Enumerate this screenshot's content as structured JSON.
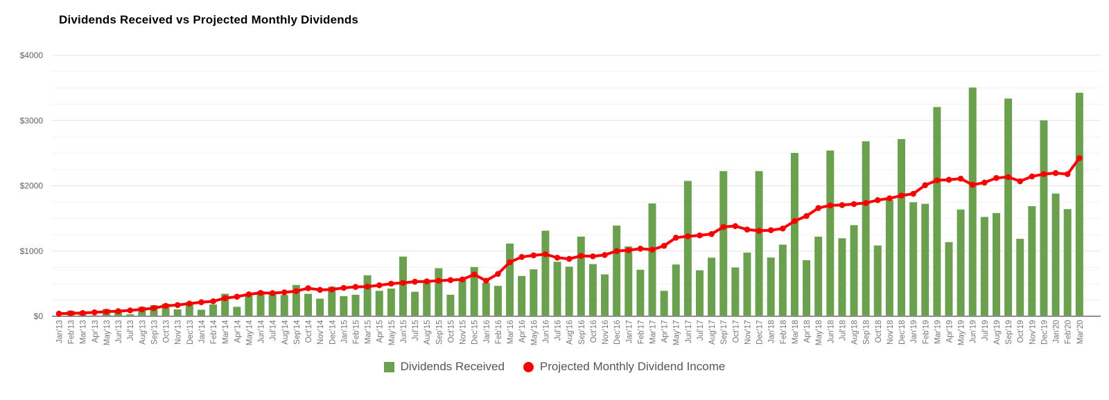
{
  "title": "Dividends Received vs Projected Monthly Dividends",
  "legend": {
    "items": [
      {
        "label": "Dividends Received",
        "shape": "square",
        "color": "#6ba04f"
      },
      {
        "label": "Projected Monthly Dividend Income",
        "shape": "circle",
        "color": "#fa0000"
      }
    ]
  },
  "y_axis": {
    "tick_labels": [
      "$0",
      "$1000",
      "$2000",
      "$3000",
      "$4000"
    ],
    "tick_values": [
      0,
      1000,
      2000,
      3000,
      4000
    ],
    "minor_step": 250
  },
  "chart_data": {
    "type": "bar",
    "title": "Dividends Received vs Projected Monthly Dividends",
    "xlabel": "",
    "ylabel": "",
    "ylim": [
      0,
      4000
    ],
    "grid": true,
    "legend_position": "bottom",
    "categories": [
      "Jan'13",
      "Feb'13",
      "Mar'13",
      "Apr'13",
      "May'13",
      "Jun'13",
      "Jul'13",
      "Aug'13",
      "Sep'13",
      "Oct'13",
      "Nov'13",
      "Dec'13",
      "Jan'14",
      "Feb'14",
      "Mar'14",
      "Apr'14",
      "May'14",
      "Jun'14",
      "Jul'14",
      "Aug'14",
      "Sep'14",
      "Oct'14",
      "Nov'14",
      "Dec'14",
      "Jan'15",
      "Feb'15",
      "Mar'15",
      "Apr'15",
      "May'15",
      "Jun'15",
      "Jul'15",
      "Aug'15",
      "Sep'15",
      "Oct'15",
      "Nov'15",
      "Dec'15",
      "Jan'16",
      "Feb'16",
      "Mar'16",
      "Apr'16",
      "May'16",
      "Jun'16",
      "Jul'16",
      "Aug'16",
      "Sep'16",
      "Oct'16",
      "Nov'16",
      "Dec'16",
      "Jan'17",
      "Feb'17",
      "Mar'17",
      "Apr'17",
      "May'17",
      "Jun'17",
      "Jul'17",
      "Aug'17",
      "Sep'17",
      "Oct'17",
      "Nov'17",
      "Dec'17",
      "Jan'18",
      "Feb'18",
      "Mar'18",
      "Apr'18",
      "May'18",
      "Jun'18",
      "Jul'18",
      "Aug'18",
      "Sep'18",
      "Oct'18",
      "Nov'18",
      "Dec'18",
      "Jan'19",
      "Feb'19",
      "Mar'19",
      "Apr'19",
      "May'19",
      "Jun'19",
      "Jul'19",
      "Aug'19",
      "Sep'19",
      "Oct'19",
      "Nov'19",
      "Dec'19",
      "Jan'20",
      "Feb'20",
      "Mar'20"
    ],
    "series": [
      {
        "name": "Dividends Received",
        "type": "bar",
        "color": "#6ba04f",
        "values": [
          5,
          85,
          50,
          15,
          110,
          75,
          30,
          145,
          170,
          190,
          105,
          215,
          100,
          180,
          345,
          145,
          320,
          382,
          372,
          326,
          480,
          344,
          270,
          453,
          310,
          330,
          628,
          390,
          425,
          915,
          375,
          520,
          737,
          330,
          558,
          755,
          513,
          466,
          1115,
          618,
          720,
          1312,
          835,
          760,
          1221,
          800,
          642,
          1390,
          1070,
          713,
          1730,
          390,
          793,
          2075,
          705,
          898,
          2225,
          748,
          976,
          2225,
          900,
          1098,
          2505,
          860,
          1221,
          2541,
          1196,
          1397,
          2682,
          1085,
          1783,
          2717,
          1748,
          1724,
          3208,
          1137,
          1636,
          3507,
          1523,
          1583,
          3338,
          1187,
          1688,
          3004,
          1881,
          1643,
          3426
        ]
      },
      {
        "name": "Projected Monthly Dividend Income",
        "type": "line",
        "color": "#fa0000",
        "values": [
          40,
          45,
          50,
          60,
          70,
          78,
          90,
          105,
          125,
          160,
          172,
          195,
          215,
          230,
          278,
          300,
          337,
          358,
          355,
          367,
          385,
          430,
          405,
          410,
          435,
          450,
          455,
          475,
          500,
          512,
          530,
          535,
          545,
          555,
          565,
          640,
          545,
          650,
          830,
          909,
          934,
          951,
          898,
          880,
          926,
          919,
          940,
          1000,
          1012,
          1037,
          1020,
          1080,
          1205,
          1226,
          1240,
          1261,
          1370,
          1383,
          1330,
          1310,
          1320,
          1345,
          1460,
          1537,
          1660,
          1700,
          1705,
          1720,
          1737,
          1780,
          1808,
          1850,
          1878,
          2010,
          2085,
          2093,
          2110,
          2015,
          2050,
          2120,
          2135,
          2070,
          2144,
          2179,
          2196,
          2179,
          2425
        ]
      }
    ]
  }
}
